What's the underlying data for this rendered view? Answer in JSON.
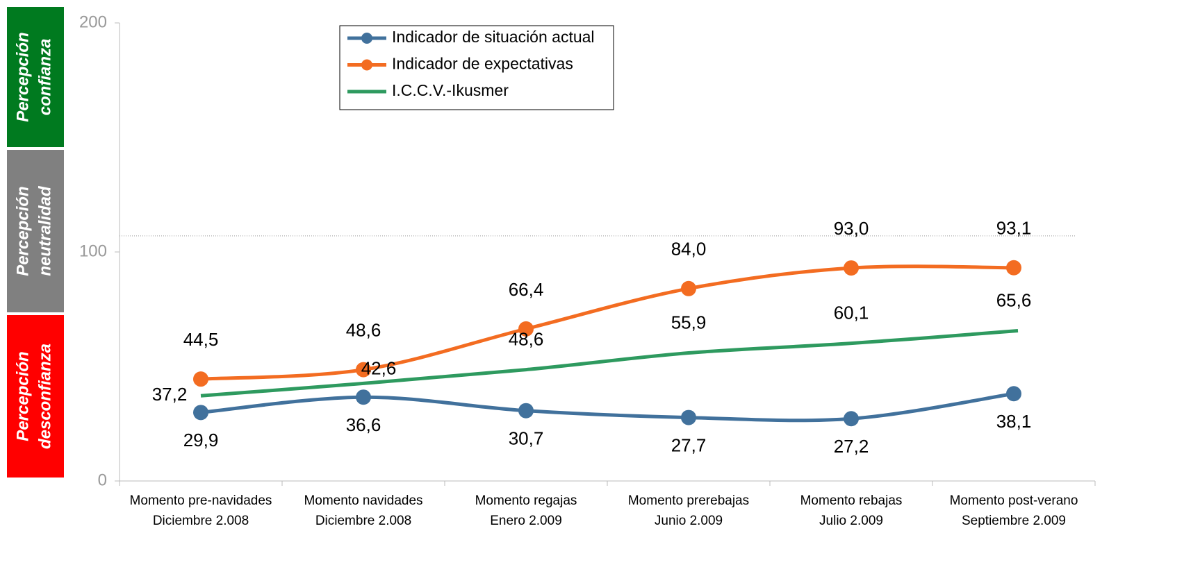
{
  "chart_data": {
    "type": "line",
    "categories": [
      [
        "Momento pre-navidades",
        "Diciembre 2.008"
      ],
      [
        "Momento navidades",
        "Diciembre 2.008"
      ],
      [
        "Momento regajas",
        "Enero 2.009"
      ],
      [
        "Momento prerebajas",
        "Junio 2.009"
      ],
      [
        "Momento rebajas",
        "Julio 2.009"
      ],
      [
        "Momento post-verano",
        "Septiembre 2.009"
      ]
    ],
    "series": [
      {
        "name": "Indicador de situación actual",
        "color": "#41719c",
        "marker": true,
        "values": [
          29.9,
          36.6,
          30.7,
          27.7,
          27.2,
          38.1
        ],
        "value_labels": [
          "29,9",
          "36,6",
          "30,7",
          "27,7",
          "27,2",
          "38,1"
        ]
      },
      {
        "name": "Indicador de expectativas",
        "color": "#f36c21",
        "marker": true,
        "values": [
          44.5,
          48.6,
          66.4,
          84.0,
          93.0,
          93.1
        ],
        "value_labels": [
          "44,5",
          "48,6",
          "66,4",
          "84,0",
          "93,0",
          "93,1"
        ]
      },
      {
        "name": "I.C.C.V.-Ikusmer",
        "color": "#2e9a5f",
        "marker": false,
        "values": [
          37.2,
          42.6,
          48.6,
          55.9,
          60.1,
          65.6
        ],
        "value_labels": [
          "37,2",
          "42,6",
          "48,6",
          "55,9",
          "60,1",
          "65,6"
        ]
      }
    ],
    "ylim": [
      0,
      200
    ],
    "yticks": [
      0,
      100,
      200
    ],
    "reference_line": 107,
    "bands": [
      {
        "lines": [
          "Percepción",
          "confianza"
        ],
        "color": "#007a1f"
      },
      {
        "lines": [
          "Percepción",
          "neutralidad"
        ],
        "color": "#808080"
      },
      {
        "lines": [
          "Percepción",
          "desconfianza"
        ],
        "color": "#ff0000"
      }
    ],
    "legend": "top"
  }
}
